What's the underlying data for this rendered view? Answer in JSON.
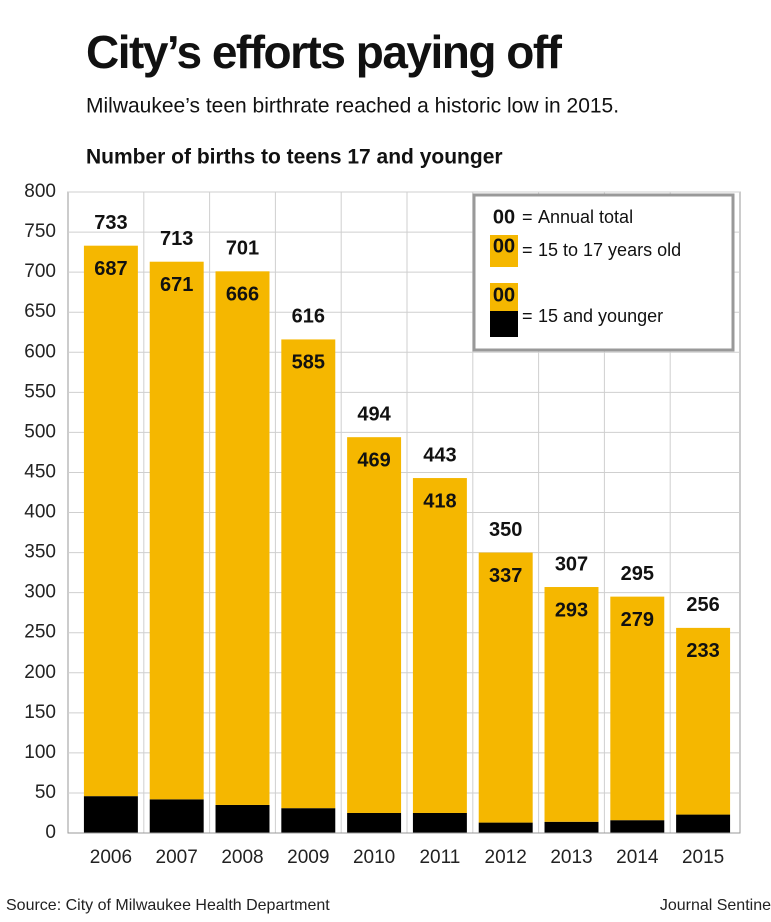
{
  "chart_data": {
    "type": "stacked_bar",
    "title": "City’s efforts paying off",
    "subtitle": "Milwaukee’s teen birthrate reached a historic low in 2015.",
    "chart_heading": "Number of births to teens 17 and younger",
    "categories": [
      "2006",
      "2007",
      "2008",
      "2009",
      "2010",
      "2011",
      "2012",
      "2013",
      "2014",
      "2015"
    ],
    "series": [
      {
        "name": "15 and younger",
        "color": "#000000",
        "values": [
          46,
          42,
          35,
          31,
          25,
          25,
          13,
          14,
          16,
          23
        ]
      },
      {
        "name": "15 to 17 years old",
        "color": "#f5b700",
        "values": [
          687,
          671,
          666,
          585,
          469,
          418,
          337,
          293,
          279,
          233
        ]
      }
    ],
    "totals": [
      733,
      713,
      701,
      616,
      494,
      443,
      350,
      307,
      295,
      256
    ],
    "totals_name": "Annual total",
    "legend_sample": "00",
    "legend_separator": "=",
    "ylim": [
      0,
      800
    ],
    "yticks": [
      0,
      50,
      100,
      150,
      200,
      250,
      300,
      350,
      400,
      450,
      500,
      550,
      600,
      650,
      700,
      750,
      800
    ],
    "grid": true,
    "legend_position": "upper right",
    "source": "Source: City of Milwaukee Health Department",
    "credit": "Journal Sentine"
  }
}
